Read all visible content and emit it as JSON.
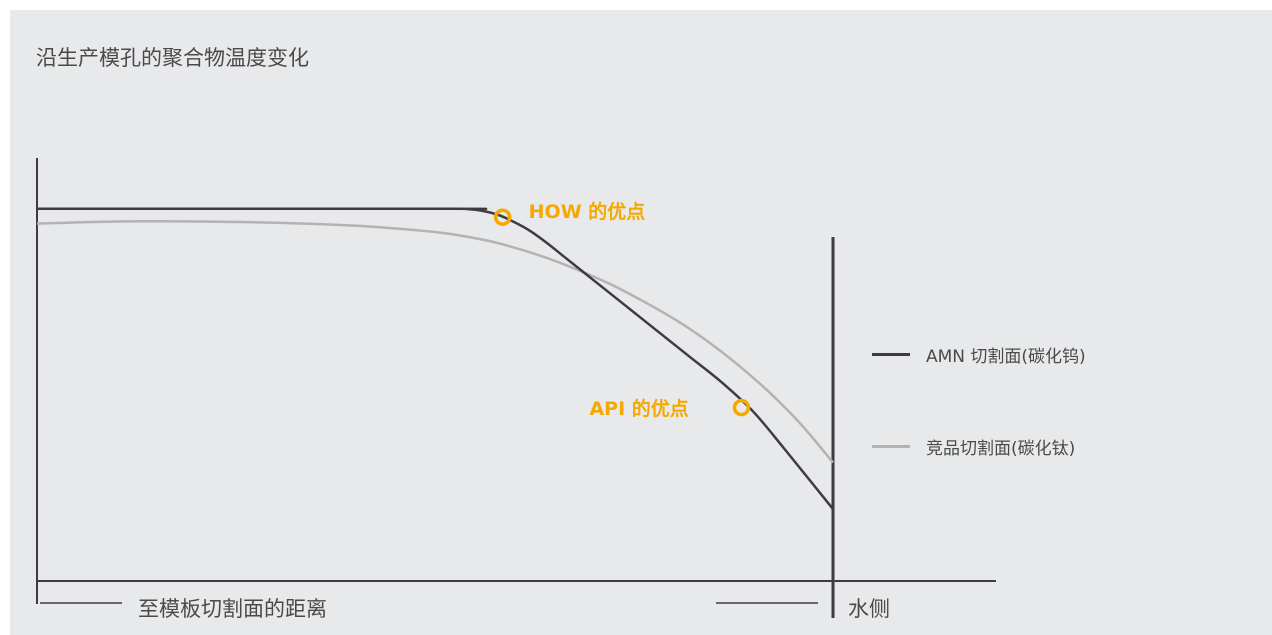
{
  "chart_data": {
    "type": "line",
    "title": "沿生产模孔的聚合物温度变化",
    "xlabel": "至模板切割面的距离",
    "ylabel": "",
    "xlim": [
      0,
      100
    ],
    "ylim": [
      0,
      100
    ],
    "grid": false,
    "legend_placement": "right",
    "boundary": {
      "label": "水侧",
      "x": 100
    },
    "series": [
      {
        "name": "AMN 切割面(碳化钨)",
        "color": "#3c3c42",
        "x": [
          0,
          52,
          54,
          56,
          58,
          60,
          62,
          64,
          66,
          70,
          74,
          78,
          82,
          86,
          90,
          94,
          100
        ],
        "y": [
          88,
          88,
          87.9,
          87.5,
          86.5,
          84.8,
          82.7,
          80,
          77,
          71,
          65,
          59,
          53,
          47,
          40,
          31,
          17
        ]
      },
      {
        "name": "竞品切割面(碳化钛)",
        "color": "#b3b3b3",
        "x": [
          0,
          10,
          20,
          30,
          40,
          50,
          56,
          60,
          64,
          68,
          72,
          76,
          80,
          84,
          88,
          92,
          96,
          100
        ],
        "y": [
          84.5,
          85,
          85,
          84.7,
          84,
          82.5,
          80.7,
          78.8,
          76.4,
          73.5,
          70.2,
          66.3,
          62,
          57,
          51.2,
          44.6,
          37,
          28
        ]
      }
    ],
    "annotations": [
      {
        "text": "HOW 的优点",
        "series": 0,
        "x": 58.5,
        "y": 86
      },
      {
        "text": "API 的优点",
        "series": 0,
        "x": 88.5,
        "y": 41
      }
    ],
    "colors": {
      "annotation": "#f5a800",
      "axis": "#3c3c42"
    }
  }
}
